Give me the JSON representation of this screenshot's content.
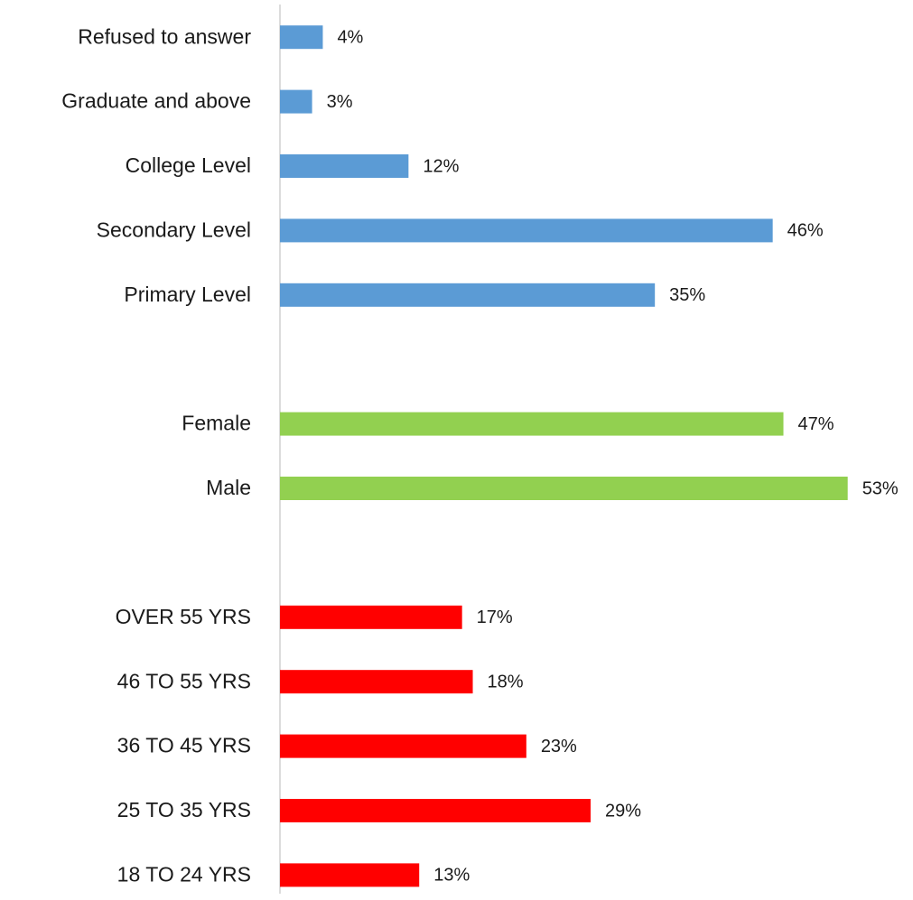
{
  "chart_data": {
    "type": "bar",
    "orientation": "horizontal",
    "categories": [
      "Refused to answer",
      "Graduate and above",
      "College Level",
      "Secondary Level",
      "Primary Level",
      null,
      "Female",
      "Male",
      null,
      "OVER 55 YRS",
      "46 TO 55 YRS",
      "36 TO 45 YRS",
      "25 TO 35 YRS",
      "18 TO 24 YRS"
    ],
    "values": [
      4,
      3,
      12,
      46,
      35,
      null,
      47,
      53,
      null,
      17,
      18,
      23,
      29,
      13
    ],
    "value_labels": [
      "4%",
      "3%",
      "12%",
      "46%",
      "35%",
      null,
      "47%",
      "53%",
      null,
      "17%",
      "18%",
      "23%",
      "29%",
      "13%"
    ],
    "colors": [
      "#5b9bd5",
      "#5b9bd5",
      "#5b9bd5",
      "#5b9bd5",
      "#5b9bd5",
      null,
      "#92d050",
      "#92d050",
      null,
      "#ff0000",
      "#ff0000",
      "#ff0000",
      "#ff0000",
      "#ff0000"
    ],
    "xlim": [
      0,
      58
    ]
  }
}
